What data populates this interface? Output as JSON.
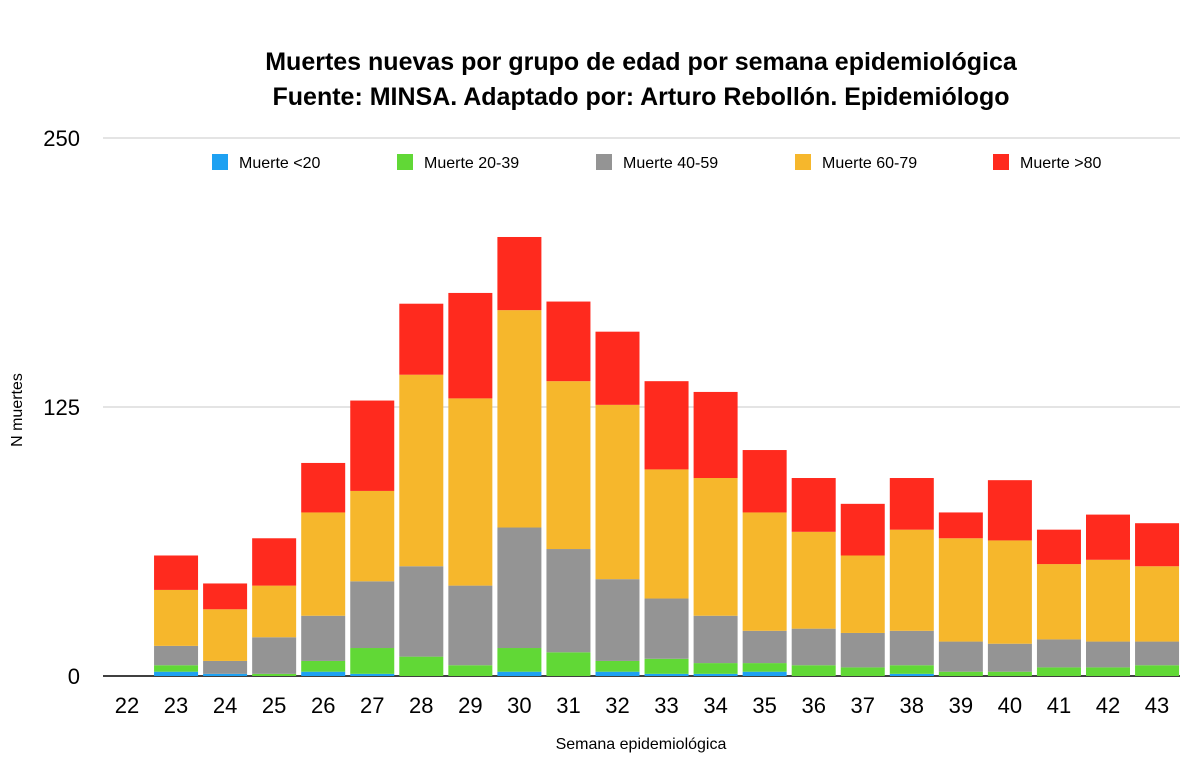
{
  "chart_data": {
    "type": "bar",
    "stacked": true,
    "title": "Muertes nuevas por grupo de edad por semana epidemiológica",
    "subtitle": "Fuente: MINSA. Adaptado por: Arturo Rebollón. Epidemiólogo",
    "xlabel": "Semana epidemiológica",
    "ylabel": "N muertes",
    "ylim": [
      0,
      250
    ],
    "yticks": [
      "0",
      "125",
      "250"
    ],
    "ytick_values": [
      0,
      125,
      250
    ],
    "grid": true,
    "legend_position": "top",
    "categories": [
      "22",
      "23",
      "24",
      "25",
      "26",
      "27",
      "28",
      "29",
      "30",
      "31",
      "32",
      "33",
      "34",
      "35",
      "36",
      "37",
      "38",
      "39",
      "40",
      "41",
      "42",
      "43"
    ],
    "series": [
      {
        "name": "Muerte <20",
        "color": "#1ea1f2",
        "values": [
          0,
          2,
          1,
          0,
          2,
          1,
          0,
          0,
          2,
          0,
          2,
          1,
          1,
          2,
          0,
          0,
          1,
          0,
          0,
          0,
          0,
          0
        ]
      },
      {
        "name": "Muerte 20-39",
        "color": "#61d836",
        "values": [
          0,
          3,
          0,
          1,
          5,
          12,
          9,
          5,
          11,
          11,
          5,
          7,
          5,
          4,
          5,
          4,
          4,
          2,
          2,
          4,
          4,
          5
        ]
      },
      {
        "name": "Muerte 40-59",
        "color": "#949494",
        "values": [
          0,
          9,
          6,
          17,
          21,
          31,
          42,
          37,
          56,
          48,
          38,
          28,
          22,
          15,
          17,
          16,
          16,
          14,
          13,
          13,
          12,
          11
        ]
      },
      {
        "name": "Muerte 60-79",
        "color": "#f6b72c",
        "values": [
          0,
          26,
          24,
          24,
          48,
          42,
          89,
          87,
          101,
          78,
          81,
          60,
          64,
          55,
          45,
          36,
          47,
          48,
          48,
          35,
          38,
          35
        ]
      },
      {
        "name": "Muerte >80",
        "color": "#ff2a1e",
        "values": [
          0,
          16,
          12,
          22,
          23,
          42,
          33,
          49,
          34,
          37,
          34,
          41,
          40,
          29,
          25,
          24,
          24,
          12,
          28,
          16,
          21,
          20
        ]
      }
    ]
  }
}
